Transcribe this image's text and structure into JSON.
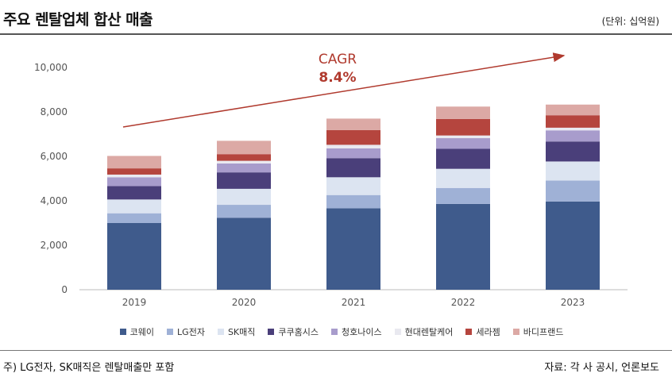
{
  "header": {
    "title": "주요 렌탈업체 합산 매출",
    "unit": "(단위: 십억원)"
  },
  "footer": {
    "note": "주) LG전자, SK매직은 렌탈매출만 포함",
    "source": "자료: 각 사 공시, 언론보도"
  },
  "annotation": {
    "label": "CAGR",
    "value": "8.4%",
    "color": "#b03a2e"
  },
  "chart_data": {
    "type": "bar",
    "stacked": true,
    "categories": [
      "2019",
      "2020",
      "2021",
      "2022",
      "2023"
    ],
    "ylim": [
      0,
      10000
    ],
    "yticks": [
      "0",
      "2,000",
      "4,000",
      "6,000",
      "8,000",
      "10,000"
    ],
    "grid": false,
    "legend_position": "bottom",
    "series": [
      {
        "name": "코웨이",
        "color": "#3f5b8c",
        "values": [
          3000,
          3240,
          3660,
          3860,
          3970
        ]
      },
      {
        "name": "LG전자",
        "color": "#9fb1d6",
        "values": [
          440,
          580,
          600,
          720,
          940
        ]
      },
      {
        "name": "SK매직",
        "color": "#dce4f1",
        "values": [
          620,
          720,
          800,
          860,
          860
        ]
      },
      {
        "name": "쿠쿠홈시스",
        "color": "#4a3f7a",
        "values": [
          600,
          740,
          860,
          900,
          900
        ]
      },
      {
        "name": "청호나이스",
        "color": "#a89ccc",
        "values": [
          400,
          400,
          440,
          480,
          500
        ]
      },
      {
        "name": "현대렌탈케어",
        "color": "#e9e9f0",
        "values": [
          120,
          120,
          160,
          120,
          120
        ]
      },
      {
        "name": "세라젬",
        "color": "#b5453e",
        "values": [
          280,
          300,
          660,
          740,
          560
        ]
      },
      {
        "name": "바디프랜드",
        "color": "#dca9a5",
        "values": [
          560,
          600,
          520,
          560,
          480
        ]
      }
    ]
  }
}
